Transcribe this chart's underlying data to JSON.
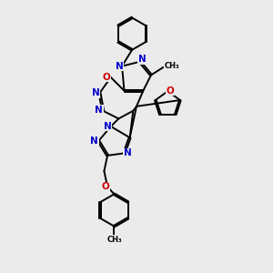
{
  "bg_color": "#ebebeb",
  "bond_color": "#000000",
  "N_color": "#0000cc",
  "O_color": "#cc0000",
  "font_size": 7.5,
  "line_width": 1.4,
  "xlim": [
    0,
    10
  ],
  "ylim": [
    0,
    12
  ]
}
